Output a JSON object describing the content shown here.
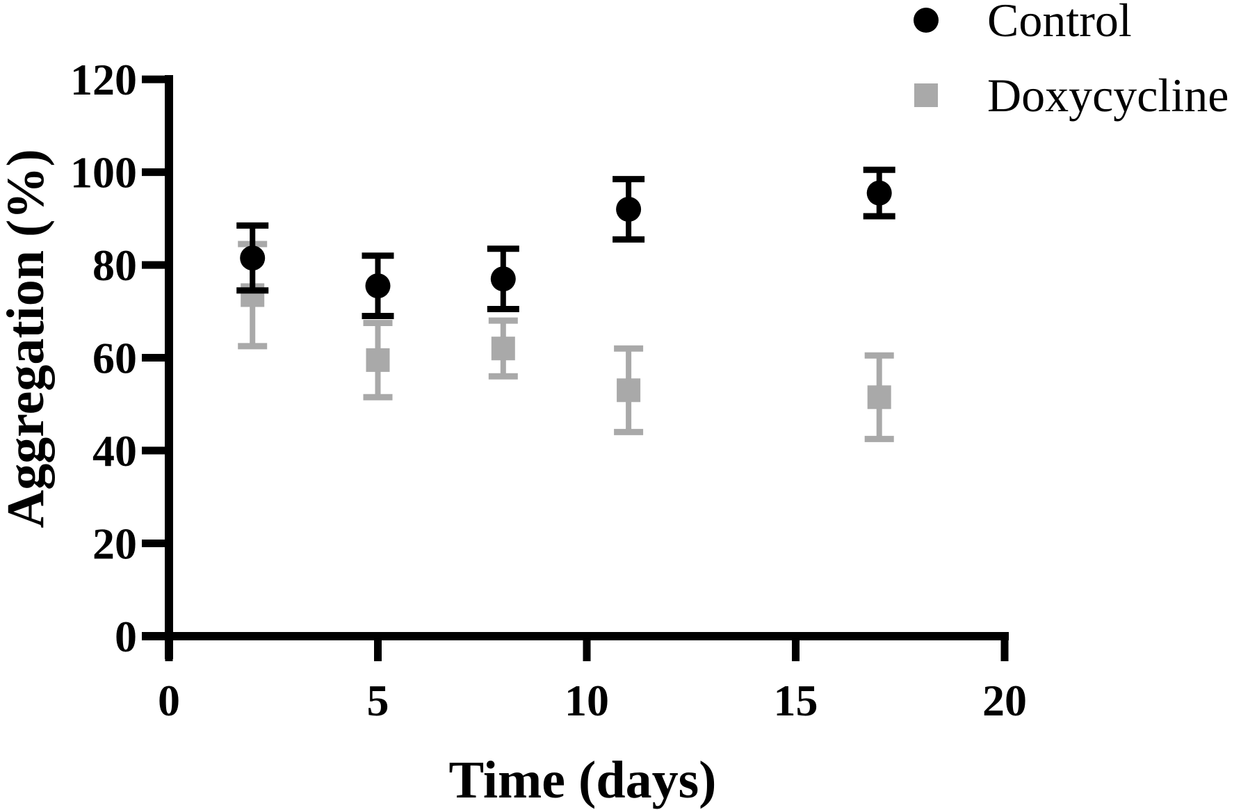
{
  "figure": {
    "background": "#ffffff",
    "colors": {
      "control": "#000000",
      "doxycycline": "#a9a9a9"
    }
  },
  "chart_data": {
    "type": "scatter",
    "title": "",
    "xlabel": "Time (days)",
    "ylabel": "Aggregation (%)",
    "xlim": [
      0,
      20
    ],
    "ylim": [
      0,
      120
    ],
    "x_ticks": [
      0,
      5,
      10,
      15,
      20
    ],
    "y_ticks": [
      0,
      20,
      40,
      60,
      80,
      100,
      120
    ],
    "grid": false,
    "error_bars": true,
    "legend_position": "top-right",
    "series": [
      {
        "name": "Control",
        "marker": "circle",
        "color": "#000000",
        "x": [
          2,
          5,
          8,
          11,
          17
        ],
        "y": [
          81.5,
          75.5,
          77,
          92,
          95.5
        ],
        "y_err": [
          7,
          6.5,
          6.5,
          6.5,
          5
        ]
      },
      {
        "name": "Doxycycline",
        "marker": "square",
        "color": "#a9a9a9",
        "x": [
          2,
          5,
          8,
          11,
          17
        ],
        "y": [
          73.5,
          59.5,
          62,
          53,
          51.5
        ],
        "y_err": [
          11,
          8,
          6,
          9,
          9
        ]
      }
    ]
  }
}
